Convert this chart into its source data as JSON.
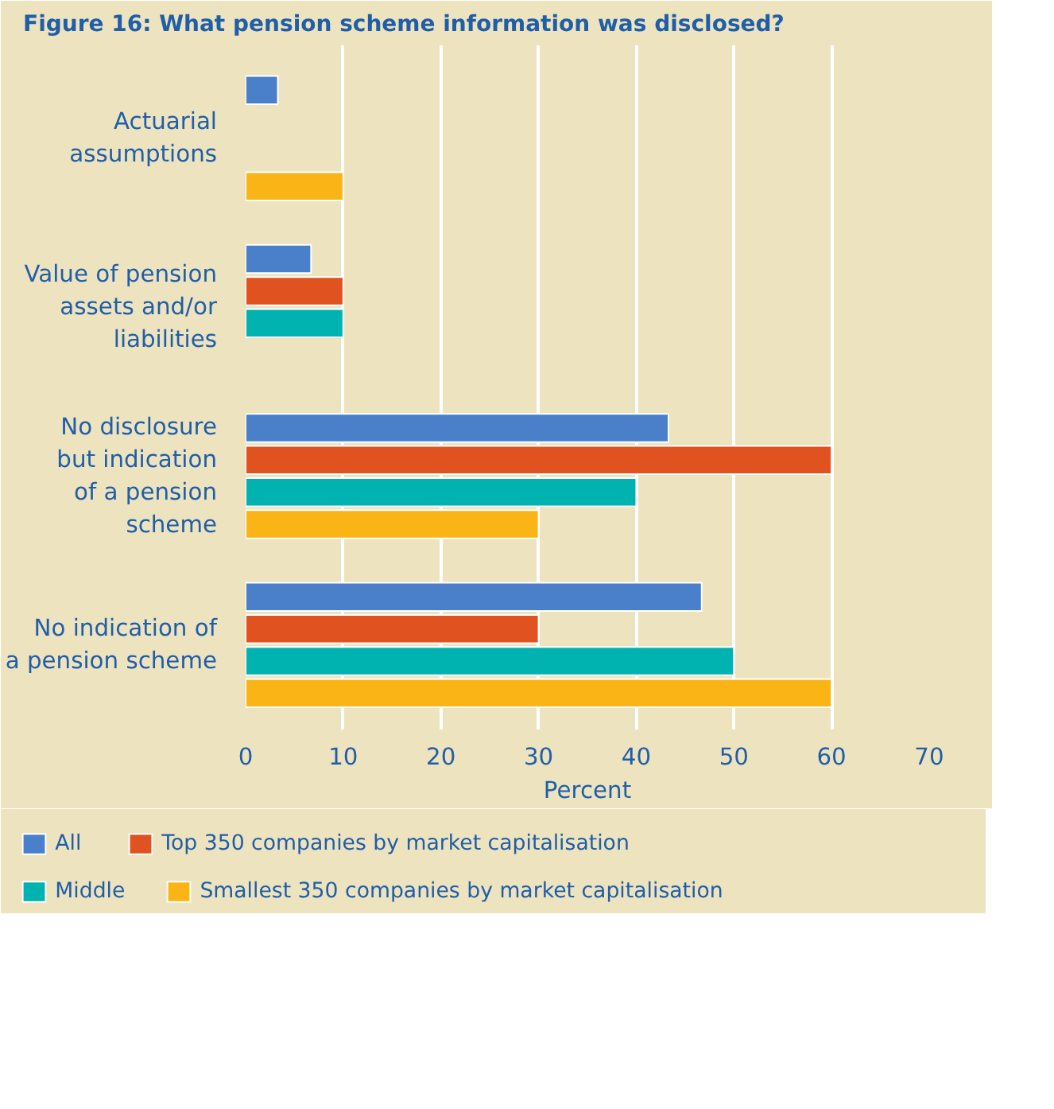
{
  "chart_data": {
    "type": "bar",
    "orientation": "horizontal",
    "title": "Figure 16: What pension scheme information was disclosed?",
    "xlabel": "Percent",
    "categories": [
      "Actuarial assumptions",
      "Value of pension assets and/or liabilities",
      "No disclosure but indication of a pension scheme",
      "No indication of a pension scheme"
    ],
    "series": [
      {
        "name": "All",
        "color": "#4a7fc9",
        "values": [
          3.3,
          6.7,
          43.3,
          46.7
        ]
      },
      {
        "name": "Top 350 companies by market capitalisation",
        "color": "#e0521f",
        "values": [
          null,
          10,
          60,
          30
        ]
      },
      {
        "name": "Middle",
        "color": "#00b2b0",
        "values": [
          null,
          10,
          40,
          50
        ]
      },
      {
        "name": "Smallest 350 companies by market capitalisation",
        "color": "#fbb415",
        "values": [
          10,
          null,
          30,
          60
        ]
      }
    ],
    "xlim": [
      0,
      70
    ],
    "xticks": [
      0,
      10,
      20,
      30,
      40,
      50,
      60,
      70
    ],
    "grid": "x",
    "legend": "bottom"
  }
}
